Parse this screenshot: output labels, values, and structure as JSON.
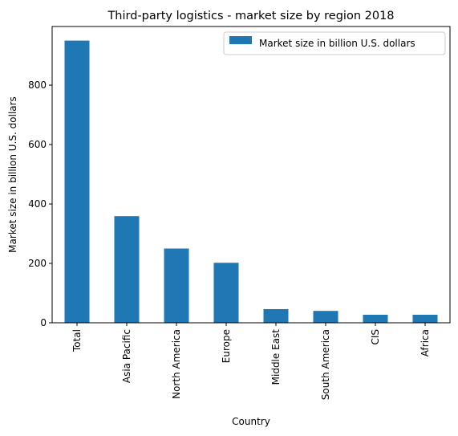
{
  "chart_data": {
    "type": "bar",
    "title": "Third-party logistics - market size by region 2018",
    "xlabel": "Country",
    "ylabel": "Market size in billion U.S. dollars",
    "categories": [
      "Total",
      "Asia Pacific",
      "North America",
      "Europe",
      "Middle East",
      "South America",
      "CIS",
      "Africa"
    ],
    "series": [
      {
        "name": "Market size in billion U.S. dollars",
        "values": [
          950,
          359,
          250,
          202,
          46,
          40,
          27,
          27
        ],
        "color": "#1f77b4"
      }
    ],
    "ylim": [
      0,
      997.5
    ],
    "yticks": [
      "0",
      "200",
      "400",
      "600",
      "800"
    ],
    "grid": false,
    "legend": "top-right"
  }
}
